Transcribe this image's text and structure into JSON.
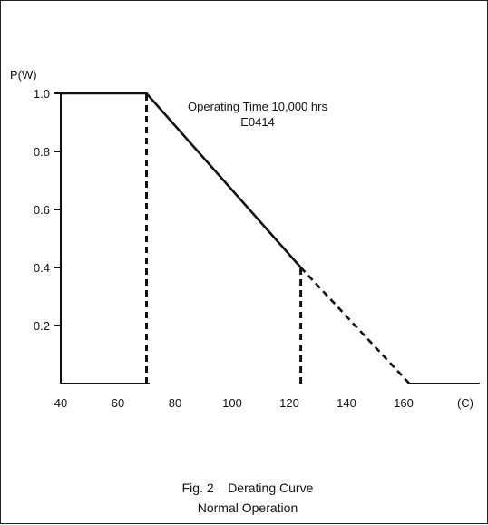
{
  "chart_data": {
    "type": "line",
    "title": "",
    "ylabel": "P(W)",
    "xlabel": "(C)",
    "xlim": [
      40,
      180
    ],
    "ylim": [
      0,
      1.0
    ],
    "xticks": [
      40,
      60,
      80,
      100,
      120,
      140,
      160
    ],
    "yticks": [
      0.2,
      0.4,
      0.6,
      0.8,
      1.0
    ],
    "ytick_labels": [
      "0.2",
      "0.4",
      "0.6",
      "0.8",
      "1.0"
    ],
    "grid": false,
    "series": [
      {
        "style": "solid",
        "x": [
          40,
          70,
          124
        ],
        "y": [
          1.0,
          1.0,
          0.4
        ]
      },
      {
        "style": "dashed",
        "x": [
          124,
          162
        ],
        "y": [
          0.4,
          0.0
        ]
      }
    ],
    "reference_lines": [
      {
        "style": "dashed",
        "x": 70,
        "y_from": 0,
        "y_to": 1.0
      },
      {
        "style": "dashed",
        "x": 124,
        "y_from": 0,
        "y_to": 0.4
      }
    ],
    "baseline": {
      "x_from": 162,
      "x_to": 178,
      "y": 0
    },
    "annotations": [
      {
        "line1": "Operating Time 10,000 hrs",
        "line2": "E0414"
      }
    ],
    "caption": {
      "line1": "Fig. 2    Derating Curve",
      "line2": "Normal Operation"
    }
  }
}
